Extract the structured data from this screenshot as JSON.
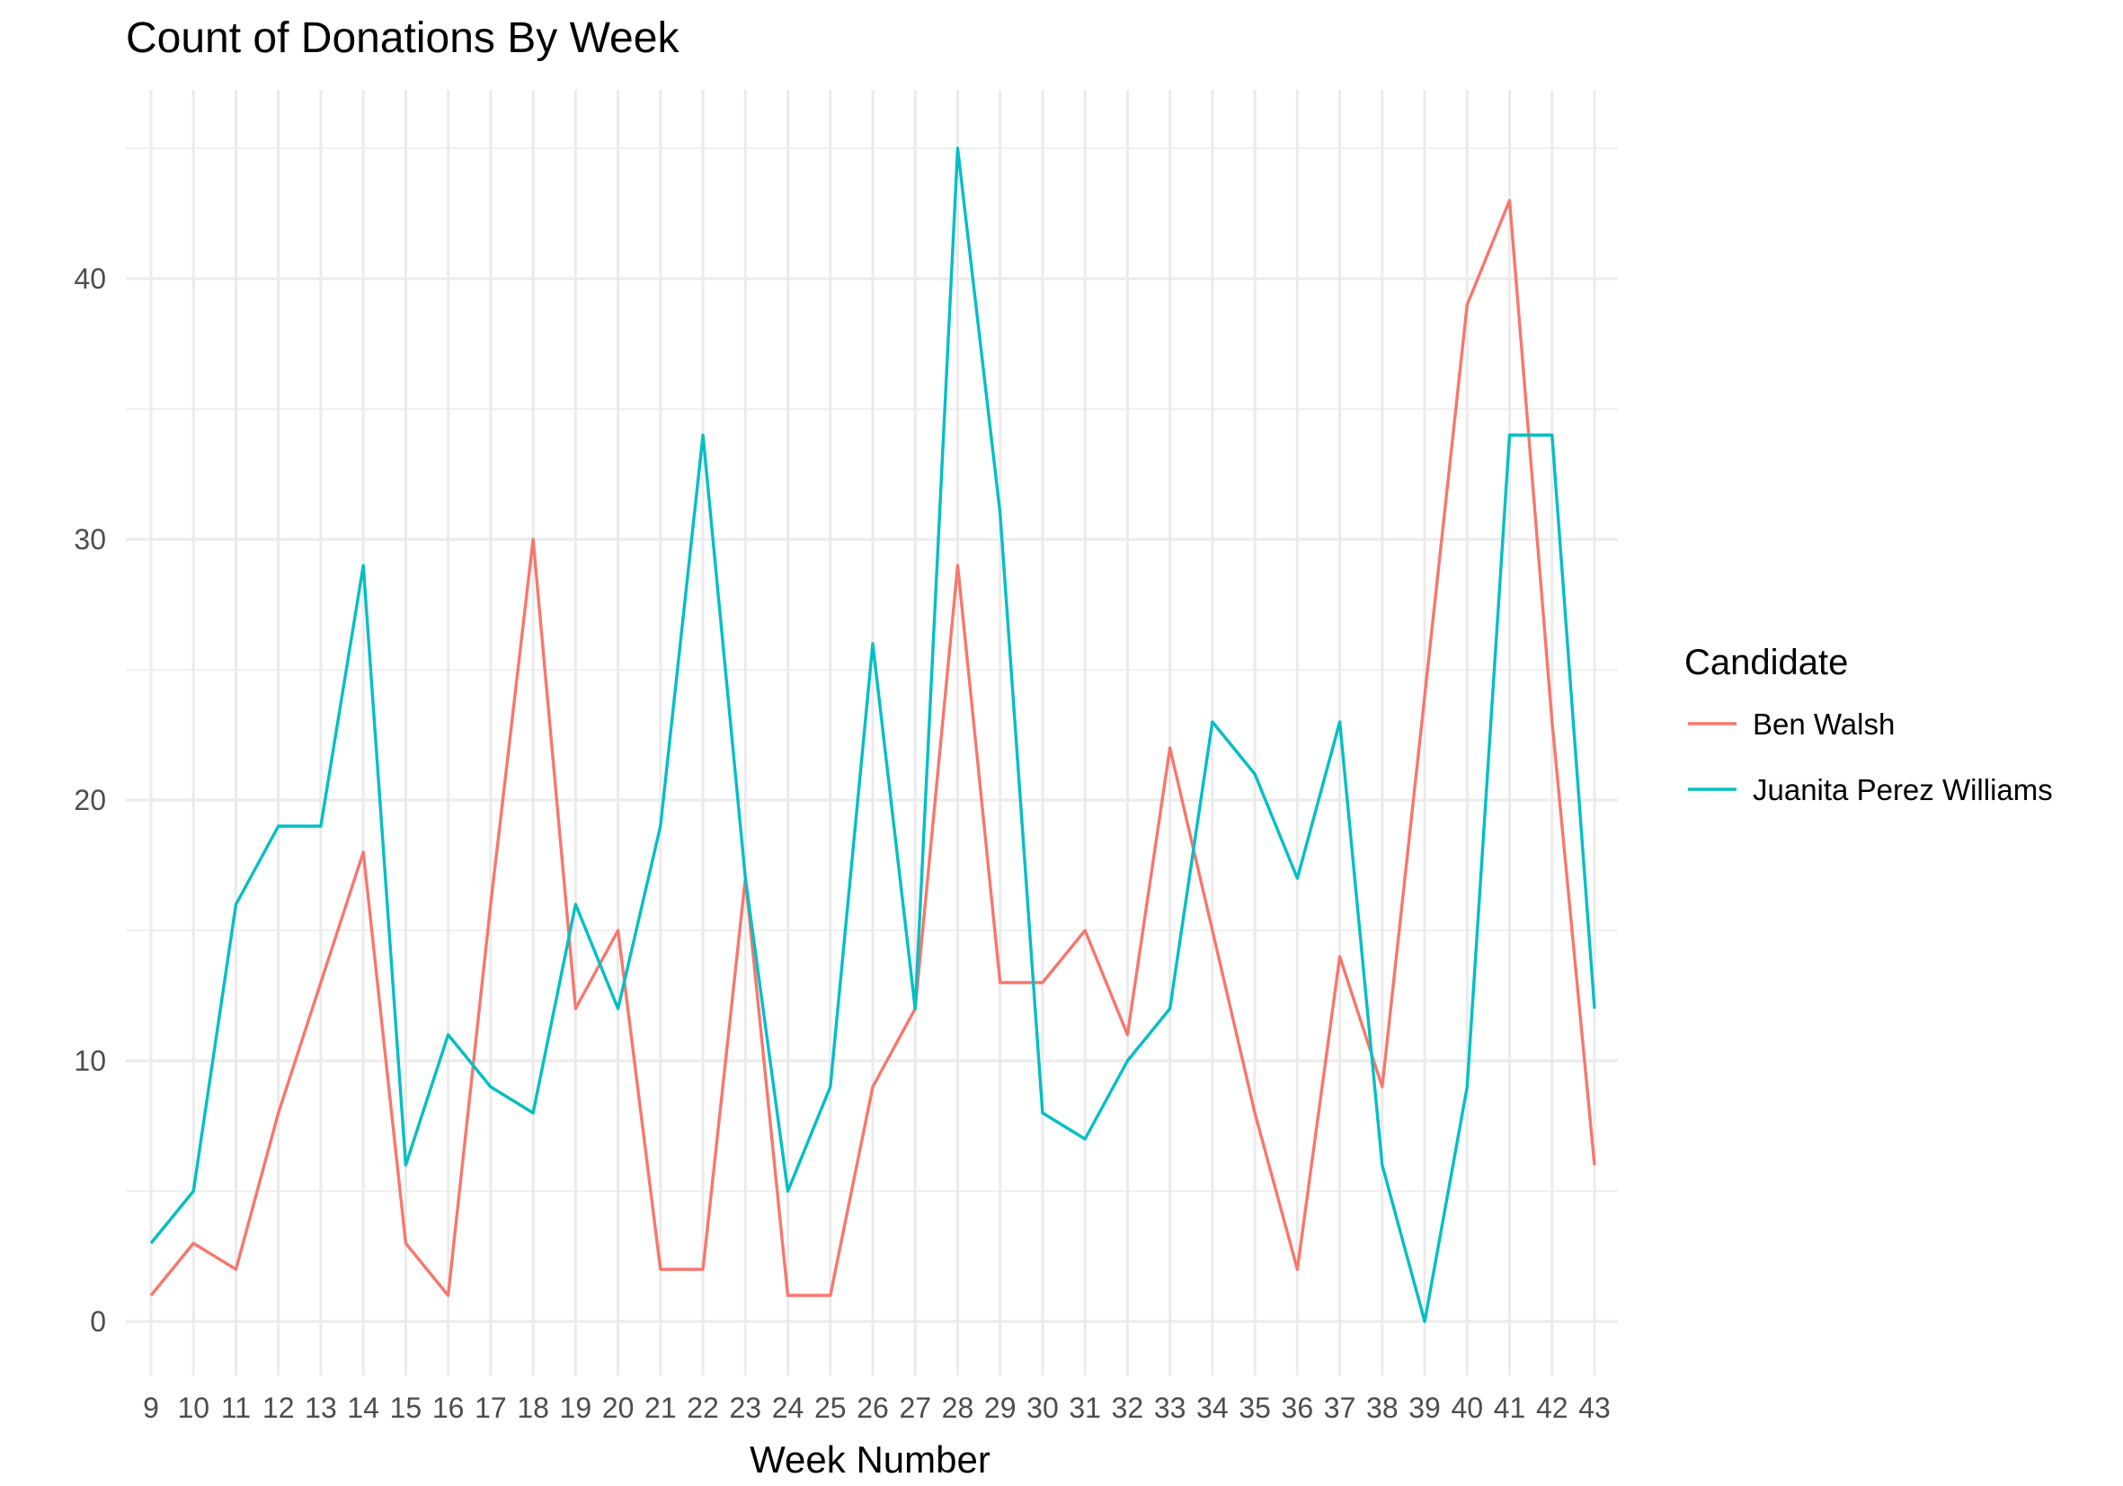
{
  "chart_data": {
    "type": "line",
    "title": "Count of Donations By Week",
    "xlabel": "Week Number",
    "ylabel": "",
    "x": [
      9,
      10,
      11,
      12,
      13,
      14,
      15,
      16,
      17,
      18,
      19,
      20,
      21,
      22,
      23,
      24,
      25,
      26,
      27,
      28,
      29,
      30,
      31,
      32,
      33,
      34,
      35,
      36,
      37,
      38,
      39,
      40,
      41,
      42,
      43
    ],
    "xlim": [
      9,
      43
    ],
    "ylim": [
      -2,
      48
    ],
    "yticks": [
      0,
      10,
      20,
      30,
      40
    ],
    "grid": true,
    "legend_title": "Candidate",
    "legend_position": "right",
    "series": [
      {
        "name": "Ben Walsh",
        "color": "#F8766D",
        "values": [
          1,
          3,
          2,
          8,
          13,
          18,
          3,
          1,
          16,
          30,
          12,
          15,
          2,
          2,
          17,
          1,
          1,
          9,
          12,
          29,
          13,
          13,
          15,
          11,
          22,
          15,
          8,
          2,
          14,
          9,
          24,
          39,
          43,
          23,
          6
        ]
      },
      {
        "name": "Juanita Perez Williams",
        "color": "#00BFC4",
        "values": [
          3,
          5,
          16,
          19,
          19,
          29,
          6,
          11,
          9,
          8,
          16,
          12,
          19,
          34,
          17,
          5,
          9,
          26,
          12,
          45,
          31,
          8,
          7,
          10,
          12,
          23,
          21,
          17,
          23,
          6,
          0,
          9,
          34,
          34,
          12
        ]
      }
    ]
  }
}
